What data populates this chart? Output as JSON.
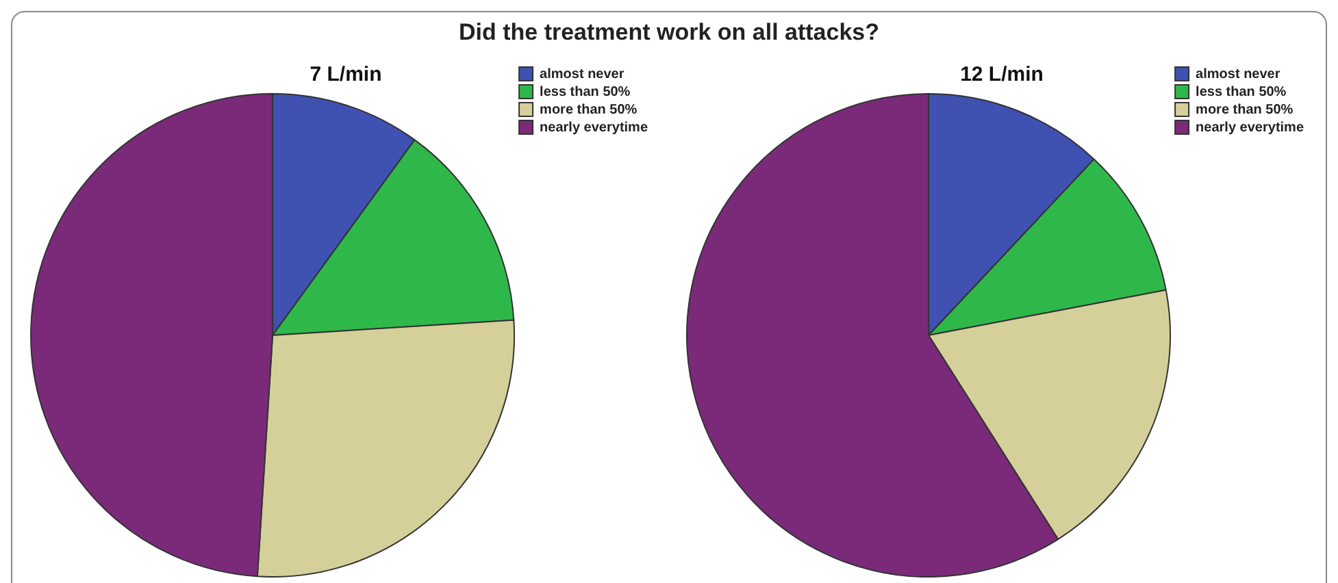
{
  "chart_data": [
    {
      "type": "pie",
      "title": "7 L/min",
      "annotations": [
        "Did the treatment work on all attacks?"
      ],
      "categories": [
        "almost never",
        "less than 50%",
        "more than 50%",
        "nearly everytime"
      ],
      "values": [
        10,
        14,
        27,
        49
      ],
      "colors": [
        "#3f51b1",
        "#2fb84a",
        "#d5d09a",
        "#7b2a7a"
      ],
      "legend": "top right"
    },
    {
      "type": "pie",
      "title": "12 L/min",
      "categories": [
        "almost never",
        "less than 50%",
        "more than 50%",
        "nearly everytime"
      ],
      "values": [
        12,
        10,
        19,
        59
      ],
      "colors": [
        "#3f51b1",
        "#2fb84a",
        "#d5d09a",
        "#7b2a7a"
      ],
      "legend": "top right"
    }
  ]
}
